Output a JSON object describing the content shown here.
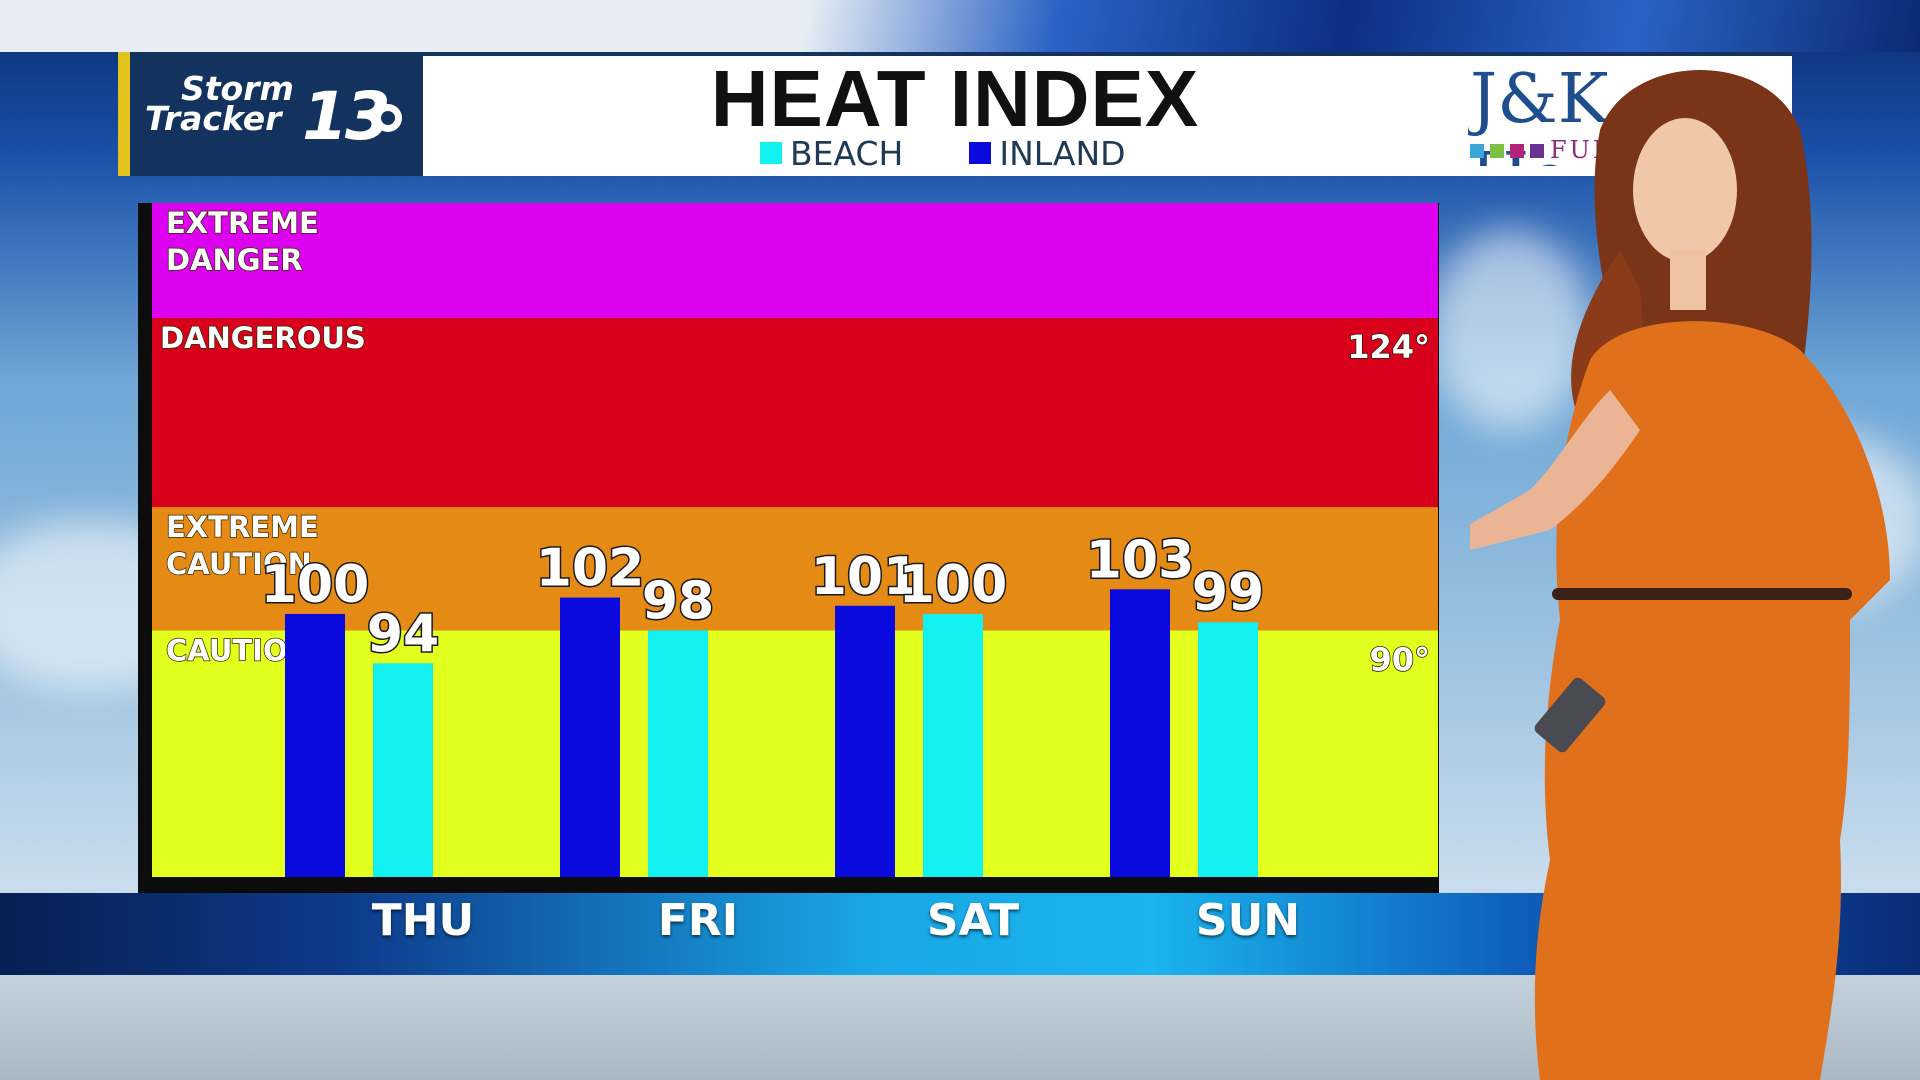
{
  "logo": {
    "line1": "Storm",
    "line2": "Tracker",
    "number": "13"
  },
  "sponsor": {
    "text": "J&K Ho",
    "sub": "FUR"
  },
  "colors": {
    "beach": "#13f0f0",
    "inland": "#0a0adf",
    "extreme_danger": "#dc02f0",
    "dangerous": "#d9001c",
    "extreme_caution": "#e68a16",
    "caution": "#e2ff1e",
    "header_navy": "#13335e",
    "presenter_dress": "#e0701c"
  },
  "chart_data": {
    "type": "bar",
    "title": "HEAT INDEX",
    "categories": [
      "THU",
      "FRI",
      "SAT",
      "SUN"
    ],
    "series": [
      {
        "name": "INLAND",
        "values": [
          100,
          102,
          101,
          103
        ]
      },
      {
        "name": "BEACH",
        "values": [
          94,
          98,
          100,
          99
        ]
      }
    ],
    "data_labels": {
      "INLAND": [
        "100",
        "102",
        "101",
        "103"
      ],
      "BEACH": [
        "94",
        "98",
        "100",
        "99"
      ]
    },
    "legend_order": [
      "BEACH",
      "INLAND"
    ],
    "legend_position": "top-center",
    "zones": [
      {
        "label_line1": "EXTREME",
        "label_line2": "DANGER",
        "from": 136,
        "to": 150
      },
      {
        "label_line1": "DANGEROUS",
        "label_line2": "",
        "from": 113,
        "to": 136
      },
      {
        "label_line1": "EXTREME",
        "label_line2": "CAUTION",
        "from": 98,
        "to": 113
      },
      {
        "label_line1": "CAUTION",
        "label_line2": "",
        "from": 68,
        "to": 98
      }
    ],
    "right_markers": [
      {
        "label": "124°",
        "value": 136
      },
      {
        "label": "90°",
        "value": 98
      }
    ],
    "ylim": [
      68,
      150
    ],
    "xlabel": "",
    "ylabel": "",
    "grid": false
  }
}
